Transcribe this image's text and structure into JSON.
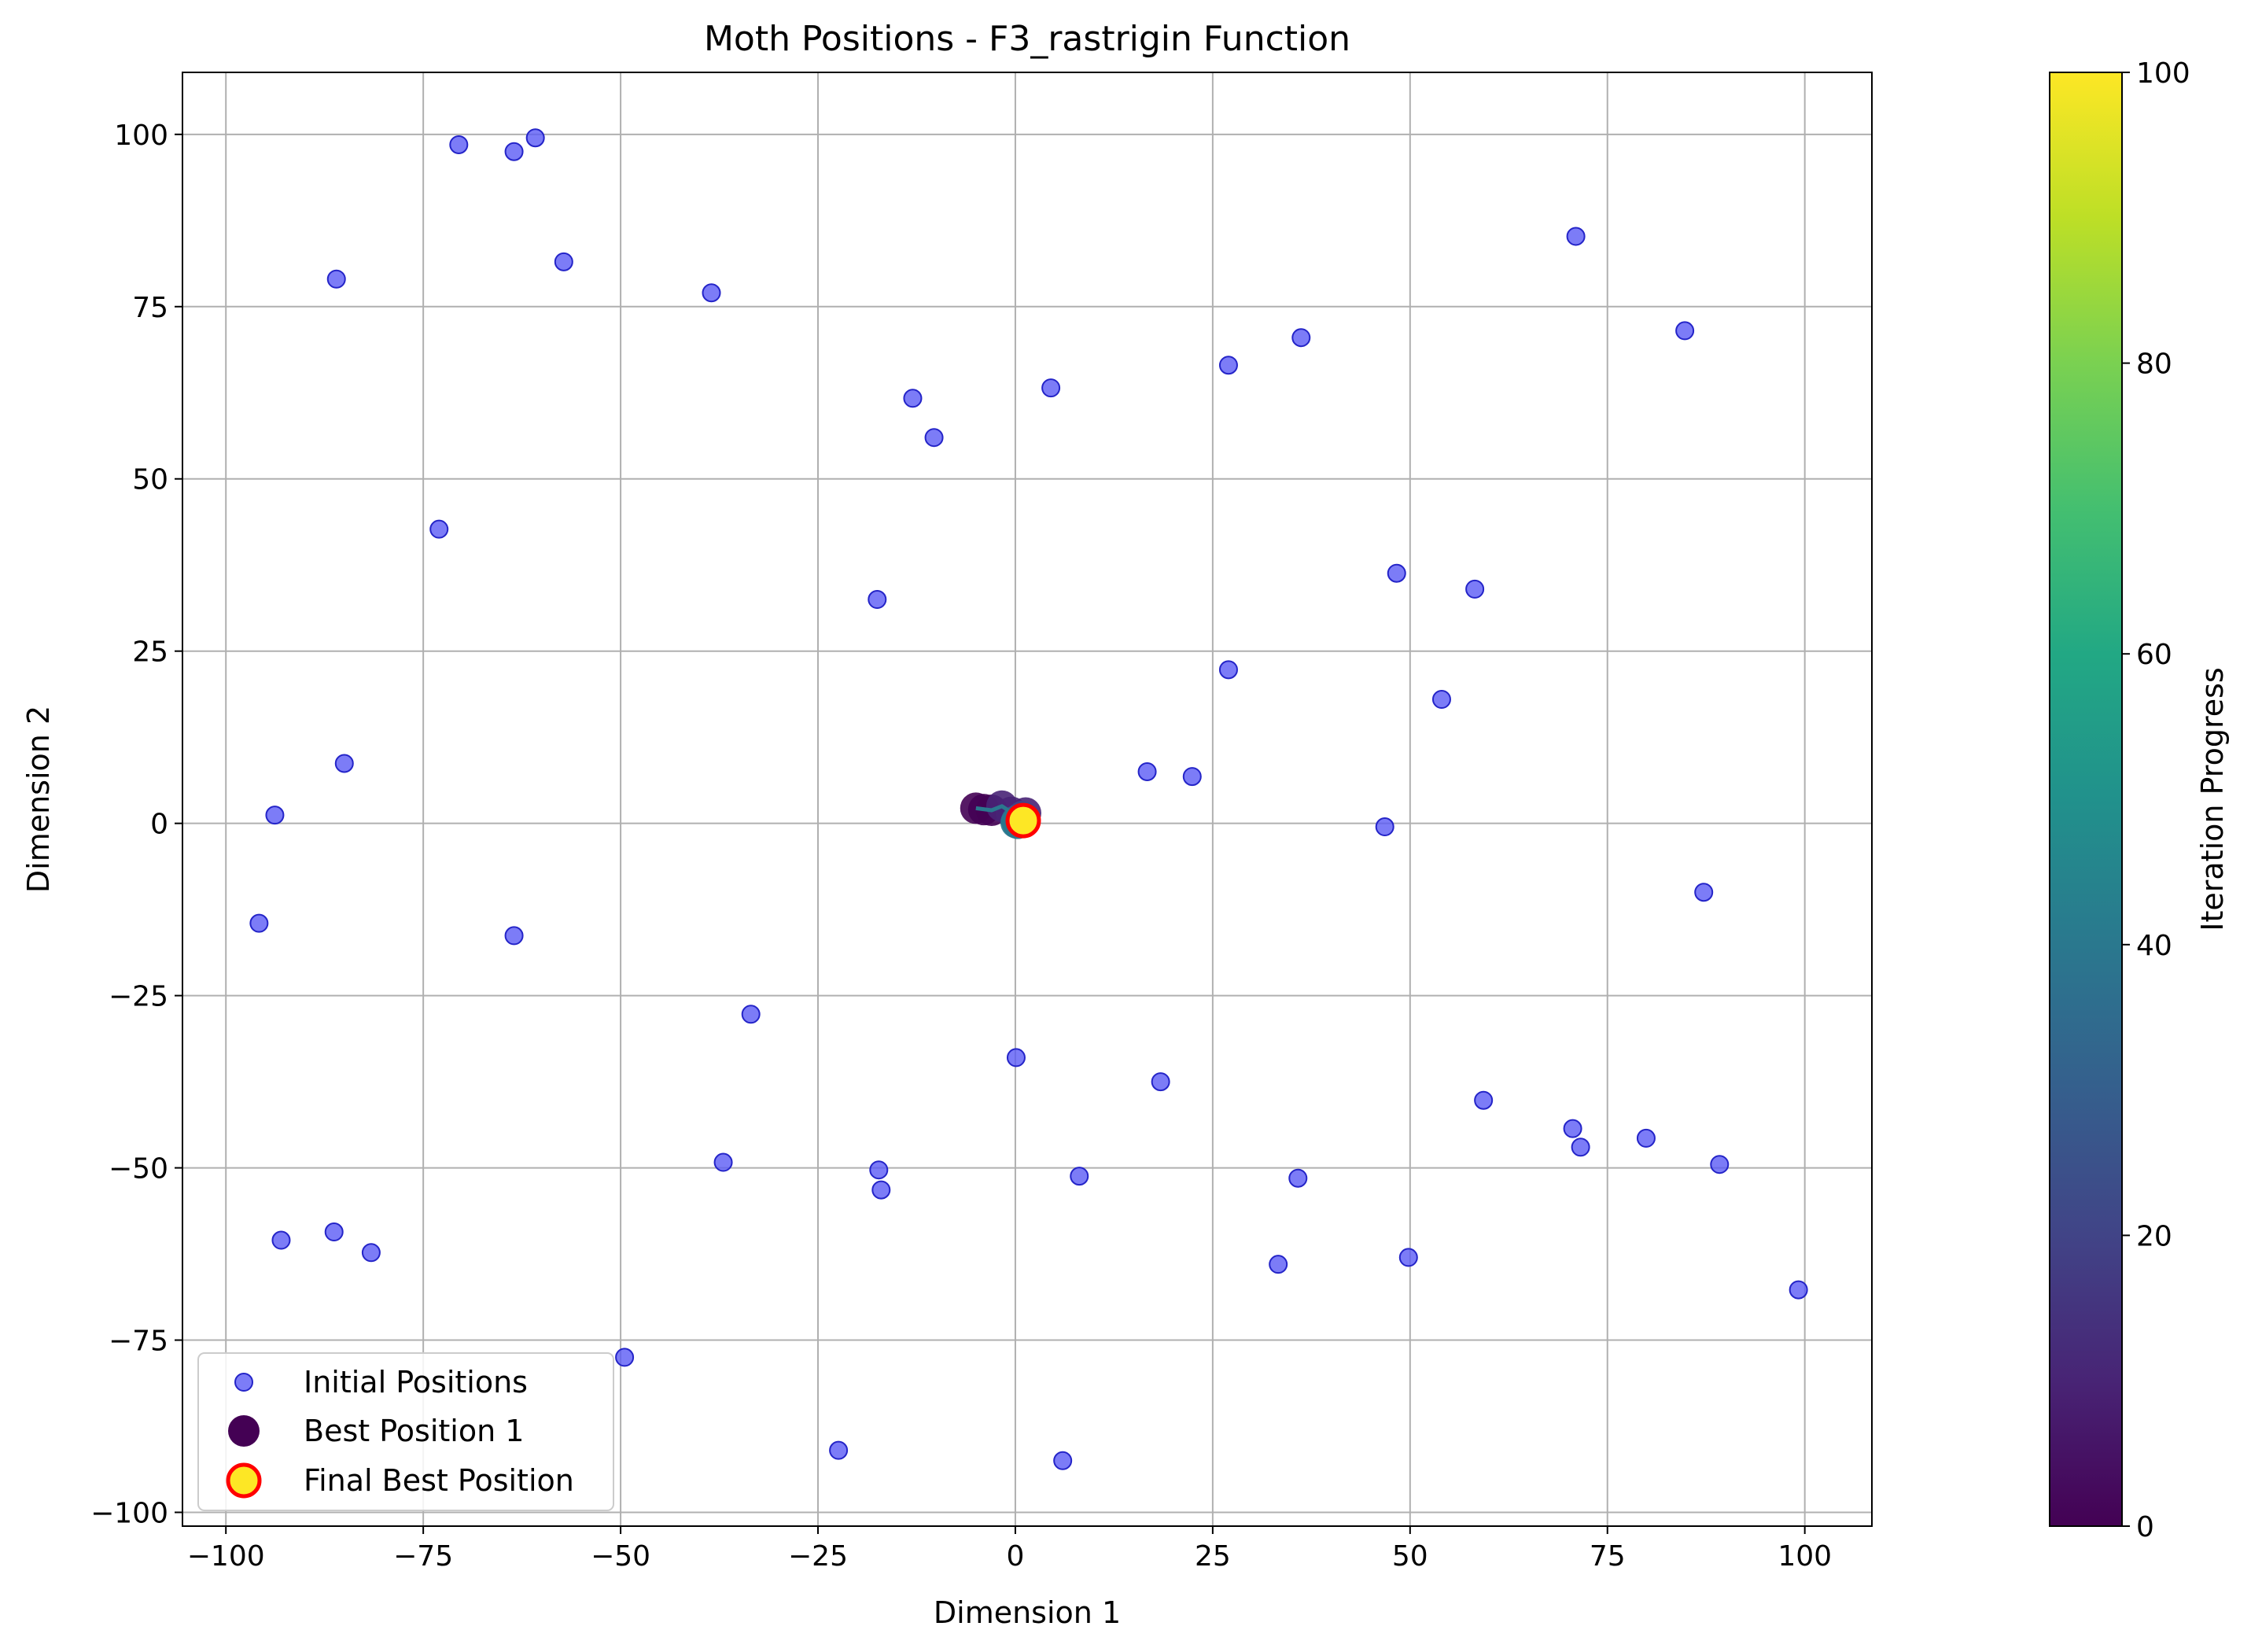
{
  "chart_data": {
    "type": "scatter",
    "title": "Moth Positions - F3_rastrigin Function",
    "xlabel": "Dimension 1",
    "ylabel": "Dimension 2",
    "xlim": [
      -105.5,
      108.5
    ],
    "ylim": [
      -102,
      109
    ],
    "xticks": [
      -100,
      -75,
      -50,
      -25,
      0,
      25,
      50,
      75,
      100
    ],
    "yticks": [
      -100,
      -75,
      -50,
      -25,
      0,
      25,
      50,
      75,
      100
    ],
    "xtick_labels": [
      "−100",
      "−75",
      "−50",
      "−25",
      "0",
      "25",
      "50",
      "75",
      "100"
    ],
    "ytick_labels": [
      "−100",
      "−75",
      "−50",
      "−25",
      "0",
      "25",
      "50",
      "75",
      "100"
    ],
    "grid": true,
    "legend_position": "lower-left",
    "colors": {
      "initial": "#5b5bf5",
      "initial_edge": "#2424c8",
      "final_fill": "#fde725",
      "final_edge": "#ff0000"
    },
    "series": [
      {
        "name": "Initial Positions",
        "kind": "initial",
        "points": [
          [
            -70.5,
            98.5
          ],
          [
            -63.5,
            97.5
          ],
          [
            -60.8,
            99.5
          ],
          [
            -57.2,
            81.5
          ],
          [
            -86.0,
            79.0
          ],
          [
            -38.5,
            77.0
          ],
          [
            -73.0,
            42.7
          ],
          [
            -13.0,
            61.7
          ],
          [
            -10.3,
            56.0
          ],
          [
            -17.5,
            32.5
          ],
          [
            4.5,
            63.2
          ],
          [
            27.0,
            66.5
          ],
          [
            36.2,
            70.5
          ],
          [
            71.0,
            85.2
          ],
          [
            84.8,
            71.5
          ],
          [
            48.3,
            36.3
          ],
          [
            58.2,
            34.0
          ],
          [
            27.0,
            22.3
          ],
          [
            54.0,
            18.0
          ],
          [
            16.7,
            7.5
          ],
          [
            22.4,
            6.8
          ],
          [
            46.8,
            -0.5
          ],
          [
            87.2,
            -10.0
          ],
          [
            -85.0,
            8.7
          ],
          [
            -93.8,
            1.2
          ],
          [
            -95.8,
            -14.5
          ],
          [
            -63.5,
            -16.3
          ],
          [
            -33.5,
            -27.7
          ],
          [
            0.1,
            -34.0
          ],
          [
            18.4,
            -37.5
          ],
          [
            59.3,
            -40.2
          ],
          [
            70.6,
            -44.3
          ],
          [
            71.6,
            -47.0
          ],
          [
            79.9,
            -45.7
          ],
          [
            89.2,
            -49.5
          ],
          [
            -37.0,
            -49.2
          ],
          [
            -17.3,
            -50.3
          ],
          [
            -17.0,
            -53.2
          ],
          [
            8.1,
            -51.2
          ],
          [
            35.8,
            -51.5
          ],
          [
            -93.0,
            -60.5
          ],
          [
            -86.3,
            -59.3
          ],
          [
            -81.6,
            -62.3
          ],
          [
            33.3,
            -64.0
          ],
          [
            49.8,
            -63.0
          ],
          [
            99.2,
            -67.7
          ],
          [
            -49.5,
            -77.5
          ],
          [
            -22.4,
            -91.0
          ],
          [
            6.0,
            -92.5
          ]
        ]
      },
      {
        "name": "Best Position 1",
        "kind": "best",
        "points": [
          [
            -5.0,
            2.2,
            0
          ],
          [
            -4.0,
            2.0,
            2
          ],
          [
            -3.0,
            1.9,
            4
          ],
          [
            -1.7,
            2.5,
            6
          ],
          [
            -0.5,
            1.6,
            8
          ],
          [
            1.3,
            1.5,
            10
          ],
          [
            0.9,
            1.0,
            15
          ],
          [
            0.6,
            0.6,
            20
          ],
          [
            0.2,
            0.4,
            25
          ],
          [
            0.4,
            0.2,
            30
          ],
          [
            0.1,
            0.1,
            35
          ],
          [
            0.3,
            0.0,
            40
          ]
        ],
        "path": [
          [
            -5.0,
            2.2
          ],
          [
            -3.0,
            1.9
          ],
          [
            -1.7,
            2.5
          ],
          [
            -0.5,
            1.6
          ],
          [
            1.3,
            1.5
          ],
          [
            0.6,
            0.6
          ],
          [
            -0.3,
            1.0
          ],
          [
            0.4,
            0.2
          ],
          [
            1.0,
            -0.4
          ],
          [
            0.0,
            0.2
          ],
          [
            0.7,
            1.2
          ],
          [
            0.3,
            -0.2
          ],
          [
            0.2,
            0.4
          ]
        ]
      },
      {
        "name": "Final Best Position",
        "kind": "final",
        "points": [
          [
            1.0,
            0.4
          ]
        ]
      }
    ],
    "colorbar": {
      "label": "Iteration Progress",
      "min": 0,
      "max": 100,
      "ticks": [
        0,
        20,
        40,
        60,
        80,
        100
      ],
      "colormap": "viridis"
    }
  }
}
